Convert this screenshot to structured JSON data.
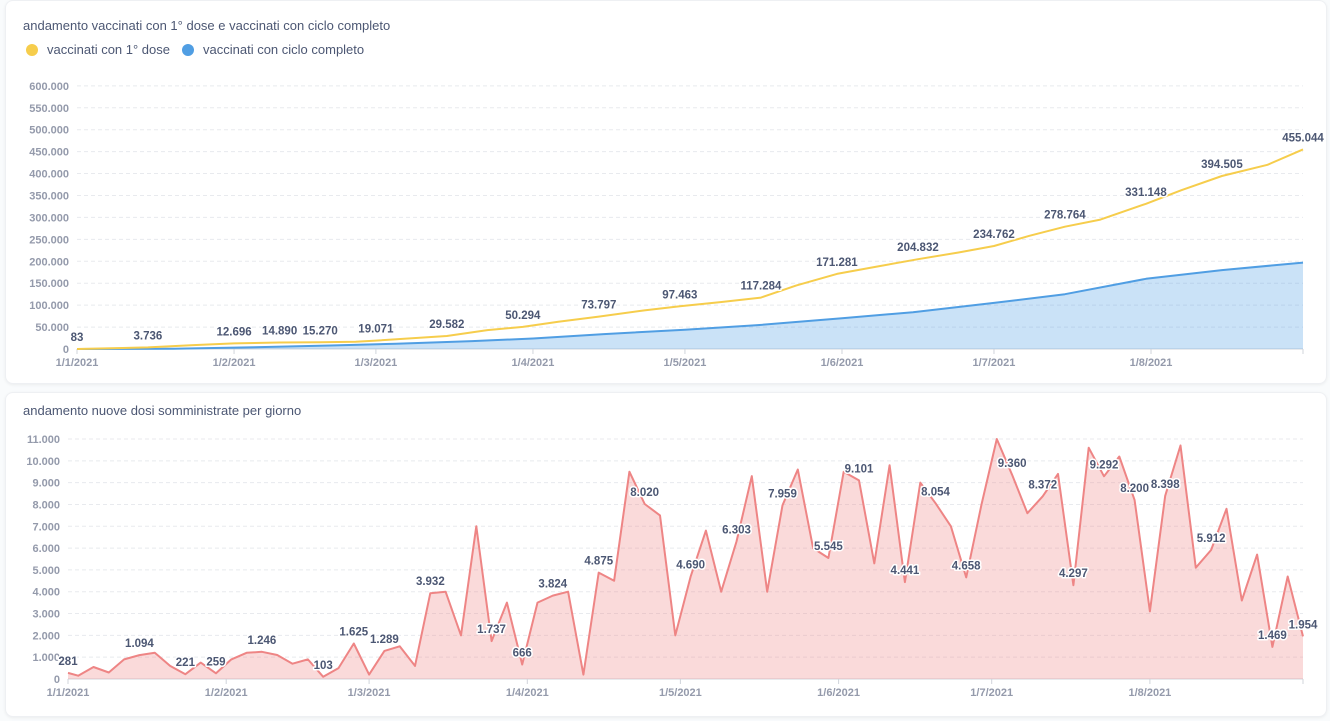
{
  "colors": {
    "first_dose": "#f6cd4c",
    "completed": "#509ee3",
    "daily": "#ee8585"
  },
  "chart_data": [
    {
      "type": "area",
      "title": "andamento vaccinati con 1° dose e vaccinati con ciclo completo",
      "legend_position": "top-left",
      "grid": true,
      "ylim": [
        0,
        636116
      ],
      "y_ticks": [
        "0",
        "50.000",
        "100.000",
        "150.000",
        "200.000",
        "250.000",
        "300.000",
        "350.000",
        "400.000",
        "450.000",
        "500.000",
        "550.000",
        "600.000"
      ],
      "x_ticks": [
        "1/1/2021",
        "1/2/2021",
        "1/3/2021",
        "1/4/2021",
        "1/5/2021",
        "1/6/2021",
        "1/7/2021",
        "1/8/2021"
      ],
      "x_range": [
        "2021-01-01",
        "2021-08-31"
      ],
      "series": [
        {
          "name": "vaccinati con 1° dose",
          "color": "#f6cd4c",
          "points": [
            [
              "2021-01-01",
              83
            ],
            [
              "2021-01-15",
              3736
            ],
            [
              "2021-01-24",
              9000
            ],
            [
              "2021-02-01",
              12696
            ],
            [
              "2021-02-10",
              14890
            ],
            [
              "2021-02-18",
              15270
            ],
            [
              "2021-02-25",
              16500
            ],
            [
              "2021-03-01",
              19071
            ],
            [
              "2021-03-15",
              29582
            ],
            [
              "2021-03-23",
              43000
            ],
            [
              "2021-03-30",
              50294
            ],
            [
              "2021-04-06",
              62000
            ],
            [
              "2021-04-14",
              73797
            ],
            [
              "2021-04-23",
              88000
            ],
            [
              "2021-04-30",
              97463
            ],
            [
              "2021-05-08",
              107000
            ],
            [
              "2021-05-16",
              117284
            ],
            [
              "2021-05-23",
              145000
            ],
            [
              "2021-05-31",
              171281
            ],
            [
              "2021-06-08",
              188000
            ],
            [
              "2021-06-16",
              204832
            ],
            [
              "2021-06-24",
              220000
            ],
            [
              "2021-07-01",
              234762
            ],
            [
              "2021-07-08",
              258000
            ],
            [
              "2021-07-15",
              278764
            ],
            [
              "2021-07-22",
              295000
            ],
            [
              "2021-07-31",
              331148
            ],
            [
              "2021-08-07",
              362000
            ],
            [
              "2021-08-15",
              394505
            ],
            [
              "2021-08-24",
              420000
            ],
            [
              "2021-08-31",
              455044
            ]
          ],
          "labels": [
            [
              "2021-01-01",
              83
            ],
            [
              "2021-01-15",
              3736
            ],
            [
              "2021-02-01",
              12696
            ],
            [
              "2021-02-10",
              14890
            ],
            [
              "2021-02-18",
              15270
            ],
            [
              "2021-03-01",
              19071
            ],
            [
              "2021-03-15",
              29582
            ],
            [
              "2021-03-30",
              50294
            ],
            [
              "2021-04-14",
              73797
            ],
            [
              "2021-04-30",
              97463
            ],
            [
              "2021-05-16",
              117284
            ],
            [
              "2021-05-31",
              171281
            ],
            [
              "2021-06-16",
              204832
            ],
            [
              "2021-07-01",
              234762
            ],
            [
              "2021-07-15",
              278764
            ],
            [
              "2021-07-31",
              331148
            ],
            [
              "2021-08-15",
              394505
            ],
            [
              "2021-08-31",
              455044
            ]
          ]
        },
        {
          "name": "vaccinati con ciclo completo",
          "color": "#509ee3",
          "points": [
            [
              "2021-01-01",
              0
            ],
            [
              "2021-01-20",
              500
            ],
            [
              "2021-02-05",
              4000
            ],
            [
              "2021-02-20",
              8000
            ],
            [
              "2021-03-05",
              12000
            ],
            [
              "2021-03-20",
              18000
            ],
            [
              "2021-04-01",
              24000
            ],
            [
              "2021-04-15",
              34000
            ],
            [
              "2021-05-01",
              44000
            ],
            [
              "2021-05-15",
              54000
            ],
            [
              "2021-06-01",
              70000
            ],
            [
              "2021-06-15",
              84000
            ],
            [
              "2021-07-01",
              105000
            ],
            [
              "2021-07-15",
              125000
            ],
            [
              "2021-07-31",
              160000
            ],
            [
              "2021-08-15",
              180000
            ],
            [
              "2021-08-31",
              197000
            ]
          ]
        }
      ]
    },
    {
      "type": "area",
      "title": "andamento nuove dosi somministrate per giorno",
      "grid": true,
      "ylim": [
        0,
        11000
      ],
      "y_ticks": [
        "0",
        "1.000",
        "2.000",
        "3.000",
        "4.000",
        "5.000",
        "6.000",
        "7.000",
        "8.000",
        "9.000",
        "10.000",
        "11.000"
      ],
      "x_ticks": [
        "1/1/2021",
        "1/2/2021",
        "1/3/2021",
        "1/4/2021",
        "1/5/2021",
        "1/6/2021",
        "1/7/2021",
        "1/8/2021"
      ],
      "x_range": [
        "2021-01-01",
        "2021-08-31"
      ],
      "series": [
        {
          "color": "#ee8585",
          "points": [
            [
              "2021-01-01",
              281
            ],
            [
              "2021-01-03",
              150
            ],
            [
              "2021-01-06",
              550
            ],
            [
              "2021-01-09",
              300
            ],
            [
              "2021-01-12",
              900
            ],
            [
              "2021-01-15",
              1094
            ],
            [
              "2021-01-18",
              1200
            ],
            [
              "2021-01-21",
              600
            ],
            [
              "2021-01-24",
              221
            ],
            [
              "2021-01-27",
              750
            ],
            [
              "2021-01-30",
              259
            ],
            [
              "2021-02-02",
              900
            ],
            [
              "2021-02-05",
              1200
            ],
            [
              "2021-02-08",
              1246
            ],
            [
              "2021-02-11",
              1100
            ],
            [
              "2021-02-14",
              700
            ],
            [
              "2021-02-17",
              900
            ],
            [
              "2021-02-20",
              103
            ],
            [
              "2021-02-23",
              500
            ],
            [
              "2021-02-26",
              1625
            ],
            [
              "2021-03-01",
              200
            ],
            [
              "2021-03-04",
              1289
            ],
            [
              "2021-03-07",
              1500
            ],
            [
              "2021-03-10",
              600
            ],
            [
              "2021-03-13",
              3932
            ],
            [
              "2021-03-16",
              4000
            ],
            [
              "2021-03-19",
              2000
            ],
            [
              "2021-03-22",
              7000
            ],
            [
              "2021-03-25",
              1737
            ],
            [
              "2021-03-28",
              3500
            ],
            [
              "2021-03-31",
              666
            ],
            [
              "2021-04-03",
              3500
            ],
            [
              "2021-04-06",
              3824
            ],
            [
              "2021-04-09",
              4000
            ],
            [
              "2021-04-12",
              200
            ],
            [
              "2021-04-15",
              4875
            ],
            [
              "2021-04-18",
              4500
            ],
            [
              "2021-04-21",
              9500
            ],
            [
              "2021-04-24",
              8020
            ],
            [
              "2021-04-27",
              7500
            ],
            [
              "2021-04-30",
              2000
            ],
            [
              "2021-05-03",
              4690
            ],
            [
              "2021-05-06",
              6800
            ],
            [
              "2021-05-09",
              4000
            ],
            [
              "2021-05-12",
              6303
            ],
            [
              "2021-05-15",
              9300
            ],
            [
              "2021-05-18",
              4000
            ],
            [
              "2021-05-21",
              7959
            ],
            [
              "2021-05-24",
              9600
            ],
            [
              "2021-05-27",
              6000
            ],
            [
              "2021-05-30",
              5545
            ],
            [
              "2021-06-02",
              9500
            ],
            [
              "2021-06-05",
              9101
            ],
            [
              "2021-06-08",
              5300
            ],
            [
              "2021-06-11",
              9800
            ],
            [
              "2021-06-14",
              4441
            ],
            [
              "2021-06-17",
              9000
            ],
            [
              "2021-06-20",
              8054
            ],
            [
              "2021-06-23",
              7000
            ],
            [
              "2021-06-26",
              4658
            ],
            [
              "2021-06-29",
              8000
            ],
            [
              "2021-07-02",
              11000
            ],
            [
              "2021-07-05",
              9360
            ],
            [
              "2021-07-08",
              7600
            ],
            [
              "2021-07-11",
              8372
            ],
            [
              "2021-07-14",
              9400
            ],
            [
              "2021-07-17",
              4297
            ],
            [
              "2021-07-20",
              10600
            ],
            [
              "2021-07-23",
              9292
            ],
            [
              "2021-07-26",
              10200
            ],
            [
              "2021-07-29",
              8200
            ],
            [
              "2021-08-01",
              3100
            ],
            [
              "2021-08-04",
              8398
            ],
            [
              "2021-08-07",
              10700
            ],
            [
              "2021-08-10",
              5100
            ],
            [
              "2021-08-13",
              5912
            ],
            [
              "2021-08-16",
              7800
            ],
            [
              "2021-08-19",
              3600
            ],
            [
              "2021-08-22",
              5700
            ],
            [
              "2021-08-25",
              1469
            ],
            [
              "2021-08-28",
              4700
            ],
            [
              "2021-08-31",
              1954
            ]
          ],
          "labels": [
            [
              "2021-01-01",
              281
            ],
            [
              "2021-01-15",
              1094
            ],
            [
              "2021-01-24",
              221
            ],
            [
              "2021-01-30",
              259
            ],
            [
              "2021-02-08",
              1246
            ],
            [
              "2021-02-20",
              103
            ],
            [
              "2021-02-26",
              1625
            ],
            [
              "2021-03-04",
              1289
            ],
            [
              "2021-03-13",
              3932
            ],
            [
              "2021-03-25",
              1737
            ],
            [
              "2021-03-31",
              666
            ],
            [
              "2021-04-06",
              3824
            ],
            [
              "2021-04-15",
              4875
            ],
            [
              "2021-04-24",
              8020
            ],
            [
              "2021-05-03",
              4690
            ],
            [
              "2021-05-12",
              6303
            ],
            [
              "2021-05-21",
              7959
            ],
            [
              "2021-05-30",
              5545
            ],
            [
              "2021-06-05",
              9101
            ],
            [
              "2021-06-14",
              4441
            ],
            [
              "2021-06-20",
              8054
            ],
            [
              "2021-06-26",
              4658
            ],
            [
              "2021-07-05",
              9360
            ],
            [
              "2021-07-11",
              8372
            ],
            [
              "2021-07-17",
              4297
            ],
            [
              "2021-07-23",
              9292
            ],
            [
              "2021-07-29",
              8200
            ],
            [
              "2021-08-04",
              8398
            ],
            [
              "2021-08-13",
              5912
            ],
            [
              "2021-08-25",
              1469
            ],
            [
              "2021-08-31",
              1954
            ]
          ]
        }
      ]
    }
  ]
}
